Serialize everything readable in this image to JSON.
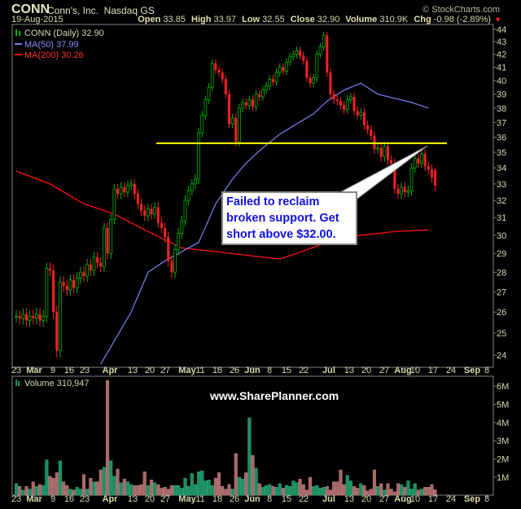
{
  "header": {
    "symbol": "CONN",
    "company": "Conn's, Inc.",
    "exchange": "Nasdaq GS",
    "copyright": "© StockCharts.com",
    "date": "19-Aug-2015",
    "open_label": "Open",
    "open": "33.85",
    "high_label": "High",
    "high": "33.97",
    "low_label": "Low",
    "low": "32.55",
    "close_label": "Close",
    "close": "32.90",
    "volume_label": "Volume",
    "volume": "310.9K",
    "chg_label": "Chg",
    "chg": "-0.98 (-2.89%)"
  },
  "legend": {
    "price": "CONN (Daily) 32.90",
    "ma50": "MA(50) 37.99",
    "ma200": "MA(200) 30.26",
    "volume": "Volume 310,947"
  },
  "annotation": "Failed to reclaim broken support. Get short above $32.00.",
  "watermark": "www.SharePlanner.com",
  "colors": {
    "up": "#00b000",
    "down": "#ff2020",
    "ma50": "#7878e8",
    "ma200": "#ff1010",
    "support": "#ffff00",
    "vol_up": "#1a8f62",
    "vol_down": "#a86868",
    "axis_text": "#d8d8b0"
  },
  "chart_data": [
    {
      "type": "candlestick",
      "scale": "log",
      "ylim": [
        24,
        44
      ],
      "yticks": [
        24,
        25,
        26,
        27,
        28,
        29,
        30,
        31,
        32,
        33,
        34,
        35,
        36,
        37,
        38,
        39,
        40,
        41,
        42,
        43,
        44
      ],
      "xticks": [
        "23",
        "Mar",
        "9",
        "16",
        "23",
        "Apr",
        "13",
        "20",
        "27",
        "May",
        "11",
        "18",
        "26",
        "Jun",
        "8",
        "15",
        "22",
        "Jul",
        "13",
        "20",
        "27",
        "Aug",
        "10",
        "17",
        "24",
        "Sep",
        "8"
      ],
      "xticks_bold": [
        "Mar",
        "Apr",
        "May",
        "Jun",
        "Jul",
        "Aug",
        "Sep"
      ],
      "support_level": 35.6,
      "weeks": [
        {
          "week": "Feb 23",
          "closes": [
            25.8,
            25.7,
            25.9,
            25.6,
            25.8
          ]
        },
        {
          "week": "Mar 2",
          "closes": [
            25.7,
            25.9,
            25.6,
            25.8,
            28.2
          ]
        },
        {
          "week": "Mar 9",
          "closes": [
            28.1,
            26.0,
            24.2,
            27.5,
            27.3
          ]
        },
        {
          "week": "Mar 16",
          "closes": [
            27.1,
            27.6,
            27.2,
            27.7,
            28.0
          ]
        },
        {
          "week": "Mar 23",
          "closes": [
            27.8,
            28.4,
            28.1,
            28.8,
            28.5
          ]
        },
        {
          "week": "Mar 30",
          "closes": [
            28.3,
            30.4,
            29.0,
            30.9
          ]
        },
        {
          "week": "Apr 6",
          "closes": [
            32.7,
            32.4,
            32.8,
            32.5,
            32.9
          ]
        },
        {
          "week": "Apr 13",
          "closes": [
            33.0,
            32.4,
            31.8,
            31.4,
            31.1
          ]
        },
        {
          "week": "Apr 20",
          "closes": [
            31.5,
            31.2,
            31.6,
            30.7,
            30.4
          ]
        },
        {
          "week": "Apr 27",
          "closes": [
            29.9,
            28.6,
            28.0,
            29.2,
            30.1
          ]
        },
        {
          "week": "May 4",
          "closes": [
            30.8,
            32.0,
            32.6,
            33.0,
            33.3
          ]
        },
        {
          "week": "May 11",
          "closes": [
            36.3,
            37.5,
            38.6,
            39.5,
            41.3
          ]
        },
        {
          "week": "May 18",
          "closes": [
            40.8,
            40.6,
            40.1,
            39.0,
            36.9
          ]
        },
        {
          "week": "May 26",
          "closes": [
            37.3,
            35.7,
            38.0,
            38.4
          ]
        },
        {
          "week": "Jun 1",
          "closes": [
            38.2,
            38.6,
            38.1,
            39.0,
            38.8
          ]
        },
        {
          "week": "Jun 8",
          "closes": [
            39.3,
            39.6,
            40.1,
            39.9,
            40.6
          ]
        },
        {
          "week": "Jun 15",
          "closes": [
            41.0,
            40.7,
            41.4,
            41.8,
            42.0
          ]
        },
        {
          "week": "Jun 22",
          "closes": [
            42.3,
            41.9,
            41.5,
            40.2,
            39.8
          ]
        },
        {
          "week": "Jun 29",
          "closes": [
            40.2,
            42.0,
            42.6,
            43.5
          ]
        },
        {
          "week": "Jul 6",
          "closes": [
            40.6,
            39.0,
            38.6,
            38.5,
            38.2
          ]
        },
        {
          "week": "Jul 13",
          "closes": [
            37.9,
            38.6,
            38.8,
            37.8,
            37.5
          ]
        },
        {
          "week": "Jul 20",
          "closes": [
            37.7,
            36.8,
            36.5,
            36.1,
            35.2
          ]
        },
        {
          "week": "Jul 27",
          "closes": [
            35.3,
            34.7,
            35.4,
            34.5,
            34.3
          ]
        },
        {
          "week": "Aug 3",
          "closes": [
            32.7,
            32.4,
            32.8,
            32.5,
            32.6
          ]
        },
        {
          "week": "Aug 10",
          "closes": [
            34.0,
            34.6,
            34.3,
            34.9,
            34.1
          ]
        },
        {
          "week": "Aug 17",
          "closes": [
            33.9,
            33.4,
            32.9
          ]
        }
      ],
      "ma50": [
        [
          "Mar 30",
          23.6
        ],
        [
          "Apr 13",
          26.0
        ],
        [
          "Apr 20",
          28.0
        ],
        [
          "Apr 27",
          28.6
        ],
        [
          "May 11",
          29.6
        ],
        [
          "May 18",
          31.8
        ],
        [
          "May 26",
          33.3
        ],
        [
          "Jun 1",
          34.3
        ],
        [
          "Jun 8",
          35.3
        ],
        [
          "Jun 15",
          36.2
        ],
        [
          "Jun 22",
          36.9
        ],
        [
          "Jun 29",
          37.6
        ],
        [
          "Jul 6",
          38.5
        ],
        [
          "Jul 13",
          39.3
        ],
        [
          "Jul 20",
          39.8
        ],
        [
          "Jul 27",
          39.0
        ],
        [
          "Aug 3",
          38.7
        ],
        [
          "Aug 10",
          38.4
        ],
        [
          "Aug 17",
          38.0
        ]
      ],
      "ma200": [
        [
          "Feb 23",
          33.8
        ],
        [
          "Mar 9",
          33.0
        ],
        [
          "Mar 23",
          31.8
        ],
        [
          "Apr 6",
          31.2
        ],
        [
          "Apr 20",
          30.2
        ],
        [
          "May 4",
          29.3
        ],
        [
          "May 18",
          29.1
        ],
        [
          "Jun 1",
          28.9
        ],
        [
          "Jun 15",
          28.7
        ],
        [
          "Jun 22",
          29.0
        ],
        [
          "Jul 6",
          29.6
        ],
        [
          "Jul 20",
          30.0
        ],
        [
          "Aug 3",
          30.2
        ],
        [
          "Aug 17",
          30.3
        ]
      ]
    },
    {
      "type": "bar",
      "ylabel": "Volume",
      "yticks": [
        "1M",
        "2M",
        "3M",
        "4M",
        "5M",
        "6M"
      ],
      "ylim": [
        0,
        6.5
      ],
      "unit": "millions",
      "values": [
        0.65,
        0.5,
        0.3,
        0.5,
        0.35,
        0.75,
        0.5,
        0.6,
        0.55,
        1.95,
        1.05,
        0.95,
        1.25,
        1.9,
        0.75,
        0.55,
        0.35,
        0.3,
        0.45,
        0.35,
        1.15,
        0.35,
        0.95,
        0.75,
        0.75,
        1.4,
        1.55,
        6.3,
        1.9,
        1.05,
        1.45,
        0.7,
        0.9,
        0.75,
        0.6,
        0.55,
        0.55,
        0.6,
        1.3,
        0.55,
        0.85,
        0.7,
        0.6,
        0.4,
        0.45,
        0.35,
        0.55,
        0.55,
        0.55,
        0.4,
        0.95,
        0.5,
        1.2,
        0.6,
        1.3,
        1.35,
        0.8,
        0.85,
        0.55,
        0.95,
        1.25,
        0.5,
        0.35,
        0.6,
        0.35,
        2.3,
        1.0,
        0.9,
        1.25,
        4.25,
        2.2,
        1.5,
        0.65,
        0.45,
        0.55,
        0.6,
        0.5,
        0.45,
        0.65,
        0.4,
        0.55,
        0.5,
        0.8,
        0.7,
        0.9,
        0.6,
        0.3,
        1.0,
        0.5,
        0.55,
        0.4,
        0.45,
        0.5,
        0.3,
        0.75,
        0.75,
        1.4,
        0.6,
        1.1,
        0.8,
        0.5,
        0.4,
        0.65,
        0.55,
        0.25,
        0.35,
        1.4,
        0.5,
        0.65,
        0.3,
        0.65,
        0.35,
        0.2,
        0.65,
        0.6,
        0.45,
        0.8,
        0.35,
        0.65,
        0.3,
        0.35,
        0.45,
        0.45,
        0.6,
        0.31
      ]
    }
  ]
}
